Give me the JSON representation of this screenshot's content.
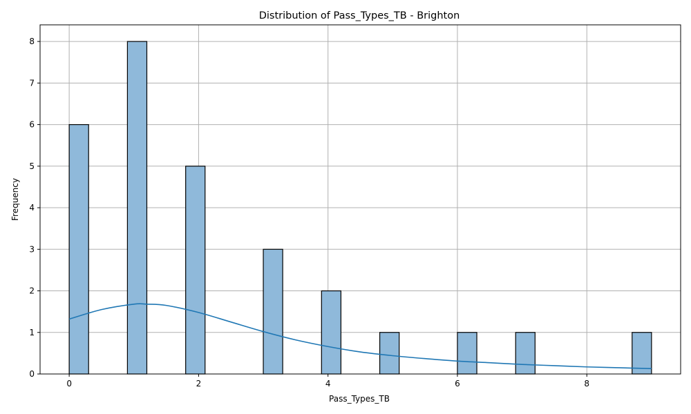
{
  "chart_data": {
    "type": "bar",
    "title": "Distribution of Pass_Types_TB - Brighton",
    "xlabel": "Pass_Types_TB",
    "ylabel": "Frequency",
    "xlim": [
      -0.45,
      9.45
    ],
    "ylim": [
      0,
      8.4
    ],
    "xticks": [
      0,
      2,
      4,
      6,
      8
    ],
    "yticks": [
      0,
      1,
      2,
      3,
      4,
      5,
      6,
      7,
      8
    ],
    "grid": true,
    "bin_width": 0.3,
    "bars": [
      {
        "x_start": 0.0,
        "x_end": 0.3,
        "count": 6
      },
      {
        "x_start": 0.9,
        "x_end": 1.2,
        "count": 8
      },
      {
        "x_start": 1.8,
        "x_end": 2.1,
        "count": 5
      },
      {
        "x_start": 3.0,
        "x_end": 3.3,
        "count": 3
      },
      {
        "x_start": 3.9,
        "x_end": 4.2,
        "count": 2
      },
      {
        "x_start": 4.8,
        "x_end": 5.1,
        "count": 1
      },
      {
        "x_start": 6.0,
        "x_end": 6.3,
        "count": 1
      },
      {
        "x_start": 6.9,
        "x_end": 7.2,
        "count": 1
      },
      {
        "x_start": 8.7,
        "x_end": 9.0,
        "count": 1
      }
    ],
    "kde": {
      "x": [
        0.0,
        0.5,
        1.0,
        1.2,
        1.5,
        2.0,
        2.5,
        3.0,
        3.5,
        4.0,
        4.5,
        5.0,
        5.5,
        6.0,
        6.5,
        7.0,
        7.5,
        8.0,
        8.5,
        9.0
      ],
      "y": [
        1.32,
        1.55,
        1.68,
        1.68,
        1.65,
        1.48,
        1.25,
        1.02,
        0.82,
        0.66,
        0.53,
        0.44,
        0.37,
        0.31,
        0.27,
        0.23,
        0.2,
        0.17,
        0.15,
        0.13
      ]
    },
    "colors": {
      "bar_fill": "#8fb9da",
      "bar_edge": "#000000",
      "kde_line": "#1f77b4",
      "grid": "#b0b0b0"
    }
  }
}
